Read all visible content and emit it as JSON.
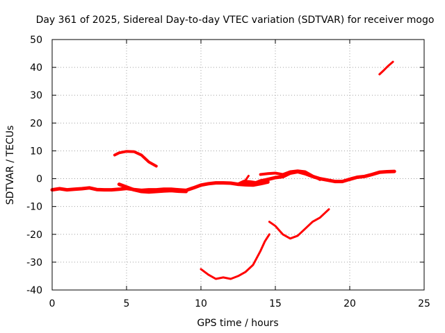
{
  "chart_data": {
    "type": "line",
    "title": "Day 361 of 2025, Sidereal Day-to-day VTEC variation (SDTVAR) for receiver mogo",
    "xlabel": "GPS time / hours",
    "ylabel": "SDTVAR / TECUs",
    "xlim": [
      0,
      25
    ],
    "ylim": [
      -40,
      50
    ],
    "x_ticks": [
      0,
      5,
      10,
      15,
      20,
      25
    ],
    "y_ticks": [
      -40,
      -30,
      -20,
      -10,
      0,
      10,
      20,
      30,
      40,
      50
    ],
    "grid": true,
    "legend": "none",
    "series_color": "#ff0000",
    "series": [
      {
        "name": "SDTVAR",
        "segments": [
          {
            "x": [
              0.0,
              0.5,
              1.0,
              1.5,
              2.0,
              2.5,
              3.0,
              3.5,
              4.0,
              4.5,
              5.0,
              5.5,
              6.0,
              6.5,
              7.0,
              7.5,
              8.0,
              8.5,
              9.0,
              9.5,
              10.0,
              10.5,
              11.0,
              11.5,
              12.0,
              12.5,
              13.0,
              13.5,
              14.0,
              14.5
            ],
            "y": [
              -4.0,
              -3.6,
              -4.0,
              -3.8,
              -3.6,
              -3.3,
              -3.9,
              -4.0,
              -4.0,
              -3.8,
              -3.5,
              -3.9,
              -4.2,
              -4.0,
              -4.0,
              -3.8,
              -3.8,
              -4.0,
              -4.2,
              -3.3,
              -2.3,
              -1.8,
              -1.5,
              -1.5,
              -1.6,
              -2.0,
              -2.2,
              -2.3,
              -1.8,
              -1.2
            ],
            "width": 5
          },
          {
            "x": [
              4.5,
              5.0,
              5.5,
              6.0,
              6.5,
              7.0,
              7.5,
              8.0,
              8.5,
              9.0
            ],
            "y": [
              -2.0,
              -3.0,
              -4.0,
              -4.6,
              -4.8,
              -4.6,
              -4.4,
              -4.3,
              -4.5,
              -4.6
            ],
            "width": 5
          },
          {
            "x": [
              4.2,
              4.5,
              5.0,
              5.5,
              6.0,
              6.5,
              7.0
            ],
            "y": [
              8.5,
              9.3,
              9.8,
              9.7,
              8.5,
              6.0,
              4.5
            ],
            "width": 4
          },
          {
            "x": [
              12.5,
              12.9,
              13.3,
              13.7,
              14.0,
              14.3,
              14.7,
              15.0,
              15.5,
              16.0,
              16.5,
              17.0,
              17.5,
              18.0,
              18.5,
              19.0,
              19.5,
              20.0,
              20.5,
              21.0,
              21.5,
              22.0,
              22.5,
              23.0
            ],
            "y": [
              -2.0,
              -1.0,
              -1.2,
              -1.5,
              -0.8,
              -0.5,
              0.0,
              0.4,
              0.7,
              2.0,
              2.5,
              1.8,
              0.8,
              0.0,
              -0.5,
              -1.0,
              -1.0,
              -0.2,
              0.5,
              0.8,
              1.5,
              2.3,
              2.5,
              2.6
            ],
            "width": 5
          },
          {
            "x": [
              12.8,
              13.0,
              13.2
            ],
            "y": [
              -2.0,
              -0.5,
              1.0
            ],
            "width": 3
          },
          {
            "x": [
              14.0,
              14.5,
              15.0,
              15.5,
              16.0,
              16.5,
              17.0,
              17.5,
              18.0
            ],
            "y": [
              1.5,
              1.8,
              2.0,
              1.5,
              2.5,
              2.8,
              2.5,
              1.0,
              -0.3
            ],
            "width": 4
          },
          {
            "x": [
              10.0,
              10.5,
              11.0,
              11.5,
              12.0,
              12.5,
              13.0,
              13.5,
              14.0,
              14.3,
              14.6
            ],
            "y": [
              -32.5,
              -34.5,
              -36.0,
              -35.5,
              -36.0,
              -35.0,
              -33.5,
              -31.0,
              -26.0,
              -22.5,
              -20.0
            ],
            "width": 3
          },
          {
            "x": [
              14.6,
              15.0,
              15.5,
              16.0,
              16.5,
              17.0,
              17.5,
              18.0,
              18.6
            ],
            "y": [
              -15.5,
              -17.0,
              -20.0,
              -21.5,
              -20.5,
              -18.0,
              -15.5,
              -14.0,
              -11.0
            ],
            "width": 3
          },
          {
            "x": [
              22.0,
              22.3,
              22.6,
              22.9
            ],
            "y": [
              37.5,
              39.0,
              40.6,
              42.0
            ],
            "width": 3
          }
        ]
      }
    ]
  }
}
